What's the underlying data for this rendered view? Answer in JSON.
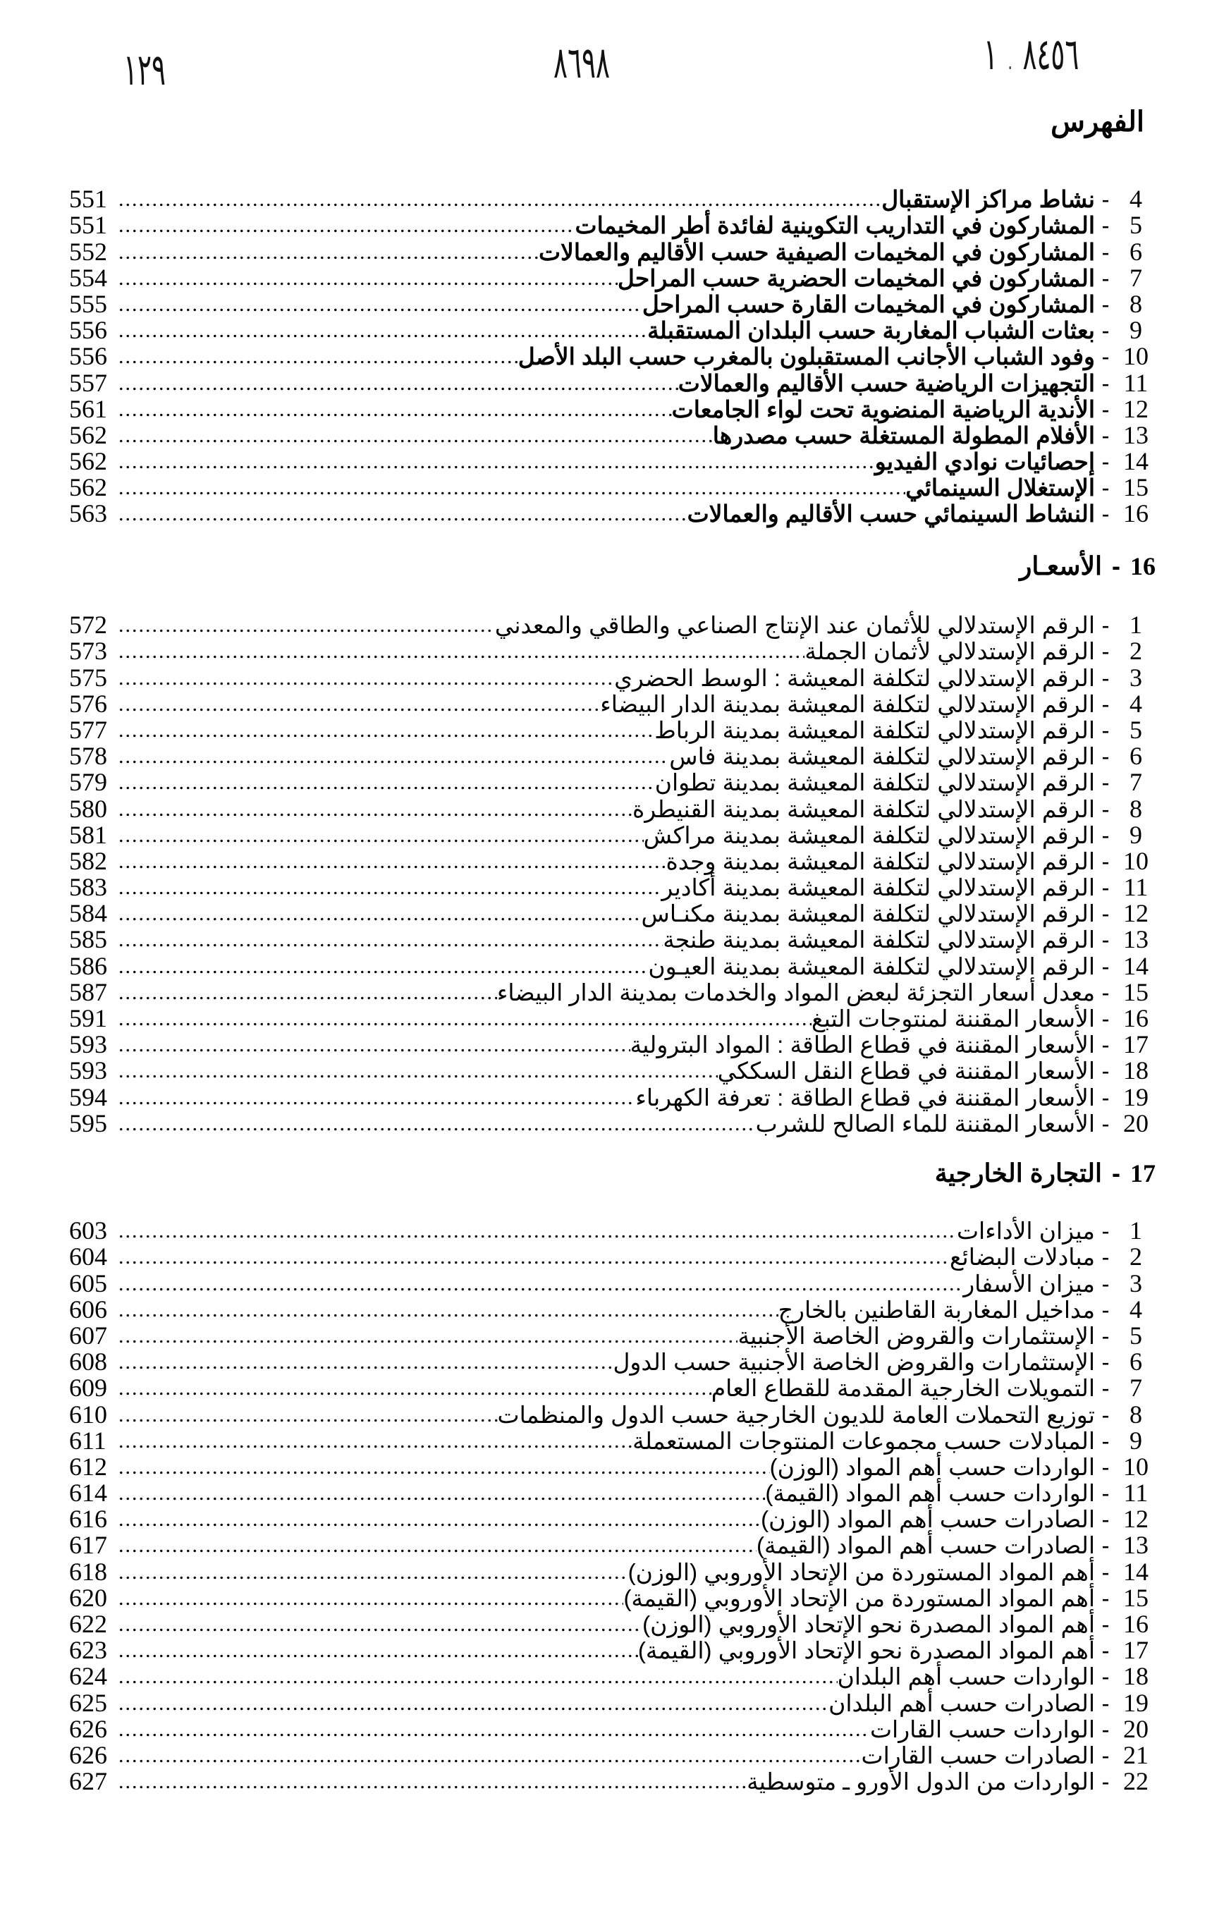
{
  "handwritten_marks": [
    "١٢٩",
    "٨٦٩٨",
    "٨٤٥٦ . ١"
  ],
  "title": "الفهرس",
  "sections": [
    {
      "number": "",
      "heading": "",
      "entries": [
        {
          "n": "4",
          "t": "نشاط مراكز الإستقبال",
          "p": "551"
        },
        {
          "n": "5",
          "t": "المشاركون في التداريب التكوينية لفائدة أطر المخيمات",
          "p": "551"
        },
        {
          "n": "6",
          "t": "المشاركون في المخيمات الصيفية حسب الأقاليم والعمالات",
          "p": "552"
        },
        {
          "n": "7",
          "t": "المشاركون في المخيمات الحضرية حسب المراحل",
          "p": "554"
        },
        {
          "n": "8",
          "t": "المشاركون في المخيمات القارة حسب المراحل",
          "p": "555"
        },
        {
          "n": "9",
          "t": "بعثات الشباب المغاربة حسب البلدان المستقبلة",
          "p": "556"
        },
        {
          "n": "10",
          "t": "وفود الشباب الأجانب المستقبلون بالمغرب حسب البلد الأصل",
          "p": "556"
        },
        {
          "n": "11",
          "t": "التجهيزات الرياضية حسب الأقاليم والعمالات",
          "p": "557"
        },
        {
          "n": "12",
          "t": "الأندية الرياضية المنضوية تحت لواء الجامعات",
          "p": "561"
        },
        {
          "n": "13",
          "t": "الأفلام المطولة المستغلة حسب مصدرها",
          "p": "562"
        },
        {
          "n": "14",
          "t": "إحصائيات نوادي الفيديو",
          "p": "562"
        },
        {
          "n": "15",
          "t": "الإستغلال السينمائي",
          "p": "562"
        },
        {
          "n": "16",
          "t": "النشاط السينمائي حسب الأقاليم والعمالات",
          "p": "563"
        }
      ]
    },
    {
      "number": "16",
      "heading": "الأسعـار",
      "entries": [
        {
          "n": "1",
          "t": "الرقم الإستدلالي للأثمان عند الإنتاج الصناعي والطاقي والمعدني",
          "p": "572"
        },
        {
          "n": "2",
          "t": "الرقم الإستدلالي لأثمان الجملة",
          "p": "573"
        },
        {
          "n": "3",
          "t": "الرقم الإستدلالي لتكلفة المعيشة : الوسط الحضري",
          "p": "575"
        },
        {
          "n": "4",
          "t": "الرقم الإستدلالي لتكلفة المعيشة بمدينة الدار البيضاء",
          "p": "576"
        },
        {
          "n": "5",
          "t": "الرقم الإستدلالي لتكلفة المعيشة بمدينة الرباط",
          "p": "577"
        },
        {
          "n": "6",
          "t": "الرقم الإستدلالي لتكلفة المعيشة بمدينة فاس",
          "p": "578"
        },
        {
          "n": "7",
          "t": "الرقم الإستدلالي لتكلفة المعيشة بمدينة تطوان",
          "p": "579"
        },
        {
          "n": "8",
          "t": "الرقم الإستدلالي لتكلفة المعيشة بمدينة القنيطرة",
          "p": "580"
        },
        {
          "n": "9",
          "t": "الرقم الإستدلالي لتكلفة المعيشة بمدينة مراكش",
          "p": "581"
        },
        {
          "n": "10",
          "t": "الرقم الإستدلالي لتكلفة المعيشة بمدينة وجدة",
          "p": "582"
        },
        {
          "n": "11",
          "t": "الرقم الإستدلالي لتكلفة المعيشة بمدينة أكادير",
          "p": "583"
        },
        {
          "n": "12",
          "t": "الرقم الإستدلالي لتكلفة المعيشة بمدينة مكنـاس",
          "p": "584"
        },
        {
          "n": "13",
          "t": "الرقم الإستدلالي لتكلفة المعيشة بمدينة طنجة",
          "p": "585"
        },
        {
          "n": "14",
          "t": "الرقم الإستدلالي لتكلفة المعيشة بمدينة العيـون",
          "p": "586"
        },
        {
          "n": "15",
          "t": "معدل أسعار التجزئة لبعض المواد والخدمات بمدينة الدار البيضاء",
          "p": "587"
        },
        {
          "n": "16",
          "t": "الأسعار المقننة لمنتوجات التبغ",
          "p": "591"
        },
        {
          "n": "17",
          "t": "الأسعار المقننة في قطاع الطاقة : المواد البترولية",
          "p": "593"
        },
        {
          "n": "18",
          "t": "الأسعار المقننة في قطاع النقل السككي",
          "p": "593"
        },
        {
          "n": "19",
          "t": "الأسعار المقننة في قطاع الطاقة : تعرفة الكهرباء",
          "p": "594"
        },
        {
          "n": "20",
          "t": "الأسعار المقننة للماء الصالح للشرب",
          "p": "595"
        }
      ]
    },
    {
      "number": "17",
      "heading": "التجارة الخارجية",
      "entries": [
        {
          "n": "1",
          "t": "ميزان الأداءات",
          "p": "603"
        },
        {
          "n": "2",
          "t": "مبادلات البضائع",
          "p": "604"
        },
        {
          "n": "3",
          "t": "ميزان الأسفار",
          "p": "605"
        },
        {
          "n": "4",
          "t": "مداخيل المغاربة القاطنين بالخارج",
          "p": "606"
        },
        {
          "n": "5",
          "t": "الإستثمارات والقروض الخاصة الأجنبية",
          "p": "607"
        },
        {
          "n": "6",
          "t": "الإستثمارات والقروض الخاصة الأجنبية حسب الدول",
          "p": "608"
        },
        {
          "n": "7",
          "t": "التمويلات الخارجية المقدمة للقطاع العام",
          "p": "609"
        },
        {
          "n": "8",
          "t": "توزيع التحملات العامة للديون الخارجية حسب الدول والمنظمات",
          "p": "610"
        },
        {
          "n": "9",
          "t": "المبادلات حسب مجموعات المنتوجات المستعملة",
          "p": "611"
        },
        {
          "n": "10",
          "t": "الواردات حسب أهم المواد (الوزن)",
          "p": "612"
        },
        {
          "n": "11",
          "t": "الواردات حسب أهم المواد (القيمة)",
          "p": "614"
        },
        {
          "n": "12",
          "t": "الصادرات حسب أهم المواد (الوزن)",
          "p": "616"
        },
        {
          "n": "13",
          "t": "الصادرات حسب أهم المواد (القيمة)",
          "p": "617"
        },
        {
          "n": "14",
          "t": "أهم المواد المستوردة من الإتحاد الأوروبي (الوزن)",
          "p": "618"
        },
        {
          "n": "15",
          "t": "أهم المواد المستوردة من الإتحاد الأوروبي (القيمة)",
          "p": "620"
        },
        {
          "n": "16",
          "t": "أهم المواد المصدرة نحو الإتحاد الأوروبي (الوزن)",
          "p": "622"
        },
        {
          "n": "17",
          "t": "أهم المواد المصدرة نحو الإتحاد الأوروبي (القيمة)",
          "p": "623"
        },
        {
          "n": "18",
          "t": "الواردات حسب أهم البلدان",
          "p": "624"
        },
        {
          "n": "19",
          "t": "الصادرات حسب أهم البلدان",
          "p": "625"
        },
        {
          "n": "20",
          "t": "الواردات حسب القارات",
          "p": "626"
        },
        {
          "n": "21",
          "t": "الصادرات حسب القارات",
          "p": "626"
        },
        {
          "n": "22",
          "t": "الواردات من الدول الأورو ـ متوسطية",
          "p": "627"
        }
      ]
    }
  ]
}
